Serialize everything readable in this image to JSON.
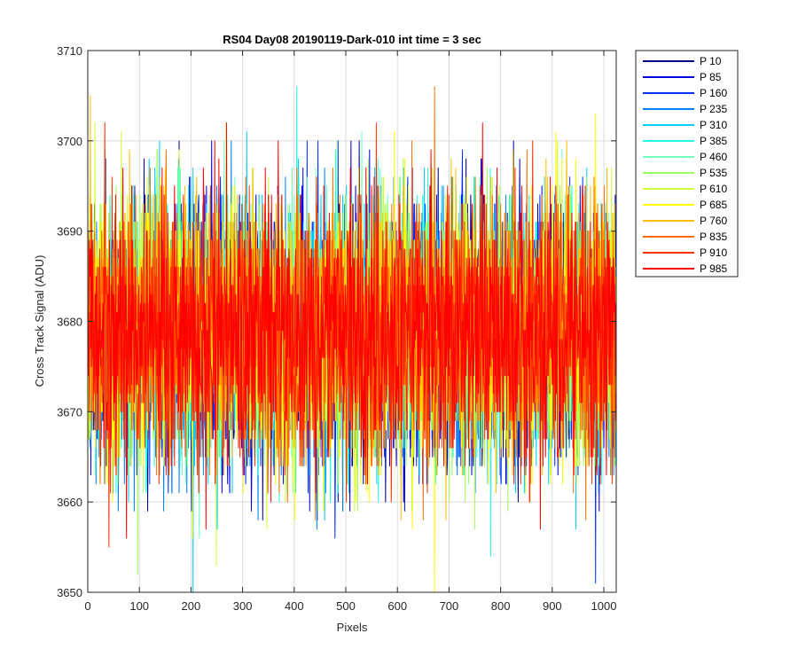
{
  "chart_data": {
    "type": "line",
    "title": "RS04 Day08 20190119-Dark-010 int time = 3 sec",
    "xlabel": "Pixels",
    "ylabel": "Cross Track Signal (ADU)",
    "xlim": [
      0,
      1024
    ],
    "ylim": [
      3650,
      3710
    ],
    "xticks": [
      "0",
      "100",
      "200",
      "300",
      "400",
      "500",
      "600",
      "700",
      "800",
      "900",
      "1000"
    ],
    "yticks": [
      "3650",
      "3660",
      "3670",
      "3680",
      "3690",
      "3700",
      "3710"
    ],
    "grid": true,
    "legend_position": "outside-top-right",
    "x_points": 1024,
    "series": [
      {
        "name": "P 10",
        "color": "#00008F",
        "mean": 3678.5,
        "min": 3658,
        "max": 3700
      },
      {
        "name": "P 85",
        "color": "#0000DF",
        "mean": 3679,
        "min": 3659,
        "max": 3700
      },
      {
        "name": "P 160",
        "color": "#0030FF",
        "mean": 3679,
        "min": 3651,
        "max": 3700
      },
      {
        "name": "P 235",
        "color": "#0080FF",
        "mean": 3678.5,
        "min": 3657,
        "max": 3700
      },
      {
        "name": "P 310",
        "color": "#00CFFF",
        "mean": 3679,
        "min": 3650,
        "max": 3701
      },
      {
        "name": "P 385",
        "color": "#20FFDF",
        "mean": 3679,
        "min": 3654,
        "max": 3706
      },
      {
        "name": "P 460",
        "color": "#70FFC0",
        "mean": 3679,
        "min": 3656,
        "max": 3701
      },
      {
        "name": "P 535",
        "color": "#9FFF60",
        "mean": 3678.5,
        "min": 3652,
        "max": 3702
      },
      {
        "name": "P 610",
        "color": "#CFFF30",
        "mean": 3679,
        "min": 3653,
        "max": 3702
      },
      {
        "name": "P 685",
        "color": "#FFFF00",
        "mean": 3679,
        "min": 3650,
        "max": 3703
      },
      {
        "name": "P 760",
        "color": "#FFBF00",
        "mean": 3679,
        "min": 3658,
        "max": 3705
      },
      {
        "name": "P 835",
        "color": "#FF7000",
        "mean": 3679,
        "min": 3658,
        "max": 3706
      },
      {
        "name": "P 910",
        "color": "#FF3000",
        "mean": 3679,
        "min": 3655,
        "max": 3702
      },
      {
        "name": "P 985",
        "color": "#FF0000",
        "mean": 3679,
        "min": 3656,
        "max": 3702
      }
    ]
  }
}
